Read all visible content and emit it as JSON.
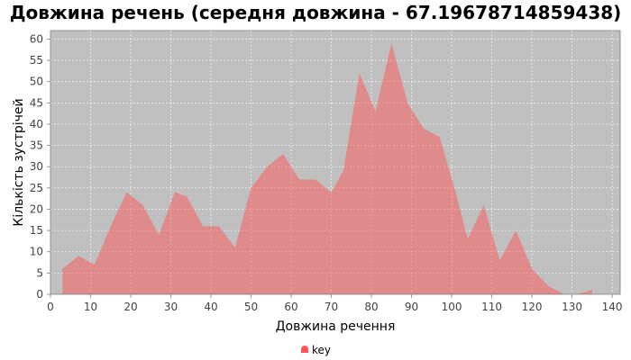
{
  "chart_data": {
    "type": "area",
    "title": "Довжина речень (середня довжина - 67.19678714859438)",
    "xlabel": "Довжина речення",
    "ylabel": "Кількість зустрічей",
    "xlim": [
      0,
      142
    ],
    "ylim": [
      0,
      62
    ],
    "x_ticks": [
      0,
      10,
      20,
      30,
      40,
      50,
      60,
      70,
      80,
      90,
      100,
      110,
      120,
      130,
      140
    ],
    "y_ticks": [
      0,
      5,
      10,
      15,
      20,
      25,
      30,
      35,
      40,
      45,
      50,
      55,
      60
    ],
    "grid": true,
    "legend_position": "bottom",
    "plot_background": "#c0c0c0",
    "series": [
      {
        "name": "key",
        "color": "#ff5555",
        "x": [
          3,
          7,
          11,
          15,
          19,
          23,
          27,
          31,
          34,
          38,
          42,
          46,
          50,
          54,
          58,
          62,
          66,
          70,
          73,
          77,
          81,
          85,
          89,
          93,
          97,
          101,
          104,
          108,
          112,
          116,
          120,
          124,
          128,
          131,
          135
        ],
        "y": [
          6,
          9,
          7,
          16,
          24,
          21,
          14,
          24,
          23,
          16,
          16,
          11,
          25,
          30,
          33,
          27,
          27,
          24,
          29,
          52,
          43,
          59,
          45,
          39,
          37,
          24,
          13,
          21,
          8,
          15,
          6,
          2,
          0,
          0,
          1
        ]
      }
    ]
  }
}
